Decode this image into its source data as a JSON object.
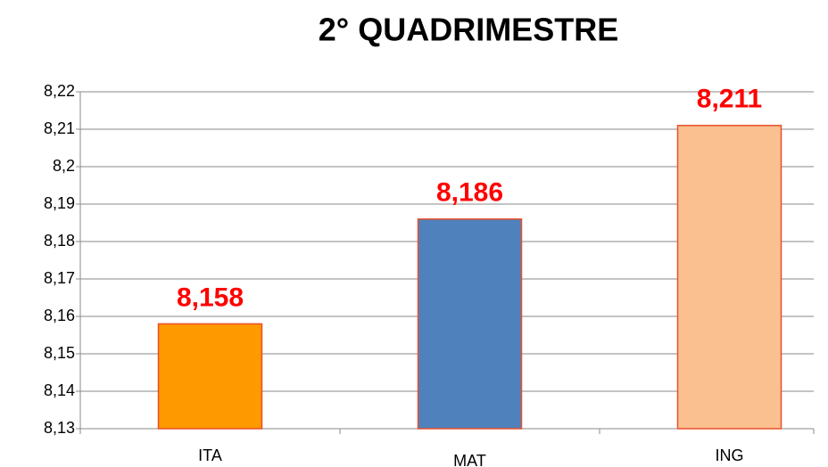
{
  "chart_data": {
    "type": "bar",
    "title": "2° QUADRIMESTRE",
    "categories": [
      "ITA",
      "MAT",
      "ING"
    ],
    "values": [
      8.158,
      8.186,
      8.211
    ],
    "value_labels": [
      "8,158",
      "8,186",
      "8,211"
    ],
    "colors": [
      "#ff9900",
      "#4f81bd",
      "#fac090"
    ],
    "ylim": [
      8.13,
      8.22
    ],
    "yticks": [
      {
        "value": 8.13,
        "label": "8,13"
      },
      {
        "value": 8.14,
        "label": "8,14"
      },
      {
        "value": 8.15,
        "label": "8,15"
      },
      {
        "value": 8.16,
        "label": "8,16"
      },
      {
        "value": 8.17,
        "label": "8,17"
      },
      {
        "value": 8.18,
        "label": "8,18"
      },
      {
        "value": 8.19,
        "label": "8,19"
      },
      {
        "value": 8.2,
        "label": "8,2"
      },
      {
        "value": 8.21,
        "label": "8,21"
      },
      {
        "value": 8.22,
        "label": "8,22"
      }
    ],
    "grid": true
  }
}
